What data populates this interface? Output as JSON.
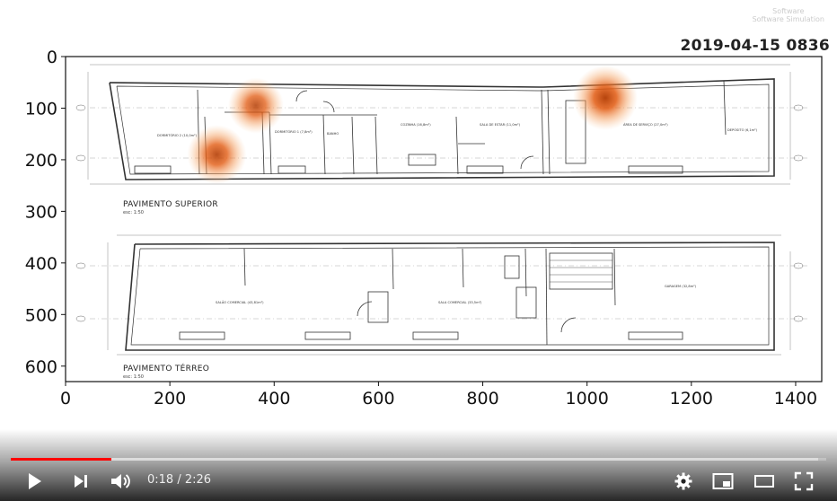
{
  "overlay": {
    "timestamp": "2019-04-15 0836",
    "watermark_line1": "Software",
    "watermark_line2": "Software Simulation"
  },
  "plan": {
    "upper_title": "PAVIMENTO SUPERIOR",
    "upper_scale": "esc: 1:50",
    "lower_title": "PAVIMENTO TÉRREO",
    "lower_scale": "esc: 1:50",
    "rooms_upper": [
      {
        "label": "DORMITÓRIO 2 (10,0m²)"
      },
      {
        "label": "DORMITÓRIO 1 (7,8m²)"
      },
      {
        "label": "BANHO"
      },
      {
        "label": "COZINHA (16,8m²)"
      },
      {
        "label": "SALA DE ESTAR (11,0m²)"
      },
      {
        "label": "ÁREA DE SERVIÇO (27,0m²)"
      },
      {
        "label": "DEPÓSITO (6,1m²)"
      }
    ],
    "rooms_lower": [
      {
        "label": "SALÃO COMERCIAL (43,81m²)"
      },
      {
        "label": "SALA COMERCIAL (33,5m²)"
      },
      {
        "label": "GARAGEM (32,8m²)"
      }
    ]
  },
  "chart_data": {
    "type": "heatmap",
    "x_ticks": [
      "0",
      "200",
      "400",
      "600",
      "800",
      "1000",
      "1200",
      "1400"
    ],
    "y_ticks": [
      "0",
      "100",
      "200",
      "300",
      "400",
      "500",
      "600"
    ],
    "xlim": [
      0,
      1450
    ],
    "ylim": [
      630,
      0
    ],
    "hotspots": [
      {
        "x": 1035,
        "y": 80,
        "intensity": 1.0
      },
      {
        "x": 365,
        "y": 95,
        "intensity": 0.75
      },
      {
        "x": 290,
        "y": 190,
        "intensity": 0.85
      }
    ],
    "colors": {
      "hot": "#e25a10",
      "warm": "#f4a060"
    }
  },
  "player": {
    "current_time": "0:18",
    "duration": "2:26",
    "separator": " / ",
    "progress_fraction": 0.123,
    "loaded_fraction": 0.99,
    "accent": "#ff0000",
    "icons": {
      "play": "play-icon",
      "next": "next-icon",
      "volume": "volume-icon",
      "settings": "gear-icon",
      "miniplayer": "miniplayer-icon",
      "theater": "theater-icon",
      "fullscreen": "fullscreen-icon"
    }
  }
}
